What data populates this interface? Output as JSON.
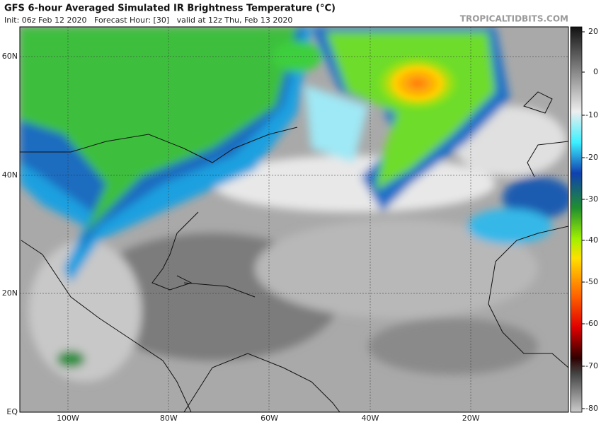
{
  "header": {
    "title": "GFS 6-hour Averaged Simulated IR Brightness Temperature (°C)",
    "subtitle": "Init: 06z Feb 12 2020   Forecast Hour: [30]   valid at 12z Thu, Feb 13 2020",
    "site": "TROPICALTIDBITS.COM"
  },
  "map": {
    "lat_labels": [
      "60N",
      "40N",
      "20N",
      "EQ"
    ],
    "lon_labels": [
      "100W",
      "80W",
      "60W",
      "40W",
      "20W"
    ]
  },
  "colorbar": {
    "ticks": [
      20,
      0,
      -10,
      -20,
      -30,
      -40,
      -50,
      -60,
      -70,
      -80
    ]
  }
}
